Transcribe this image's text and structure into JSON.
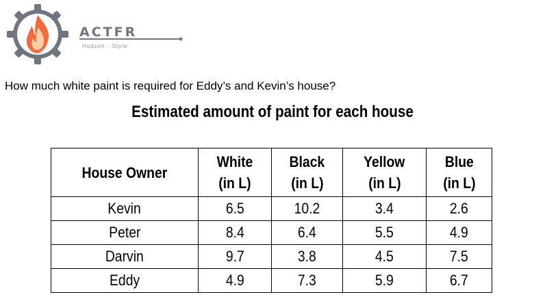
{
  "logo": {
    "brand": "ACTFR",
    "tagline": "Hudson · Style"
  },
  "question": "How much white paint is required for Eddy’s and Kevin’s house?",
  "table": {
    "title": "Estimated amount of paint for each house",
    "headers": [
      {
        "line1": "House Owner",
        "line2": ""
      },
      {
        "line1": "White",
        "line2": "(in L)"
      },
      {
        "line1": "Black",
        "line2": "(in L)"
      },
      {
        "line1": "Yellow",
        "line2": "(in L)"
      },
      {
        "line1": "Blue",
        "line2": "(in L)"
      }
    ],
    "rows": [
      [
        "Kevin",
        "6.5",
        "10.2",
        "3.4",
        "2.6"
      ],
      [
        "Peter",
        "8.4",
        "6.4",
        "5.5",
        "4.9"
      ],
      [
        "Darvin",
        "9.7",
        "3.8",
        "4.5",
        "7.5"
      ],
      [
        "Eddy",
        "4.9",
        "7.3",
        "5.9",
        "6.7"
      ]
    ]
  }
}
